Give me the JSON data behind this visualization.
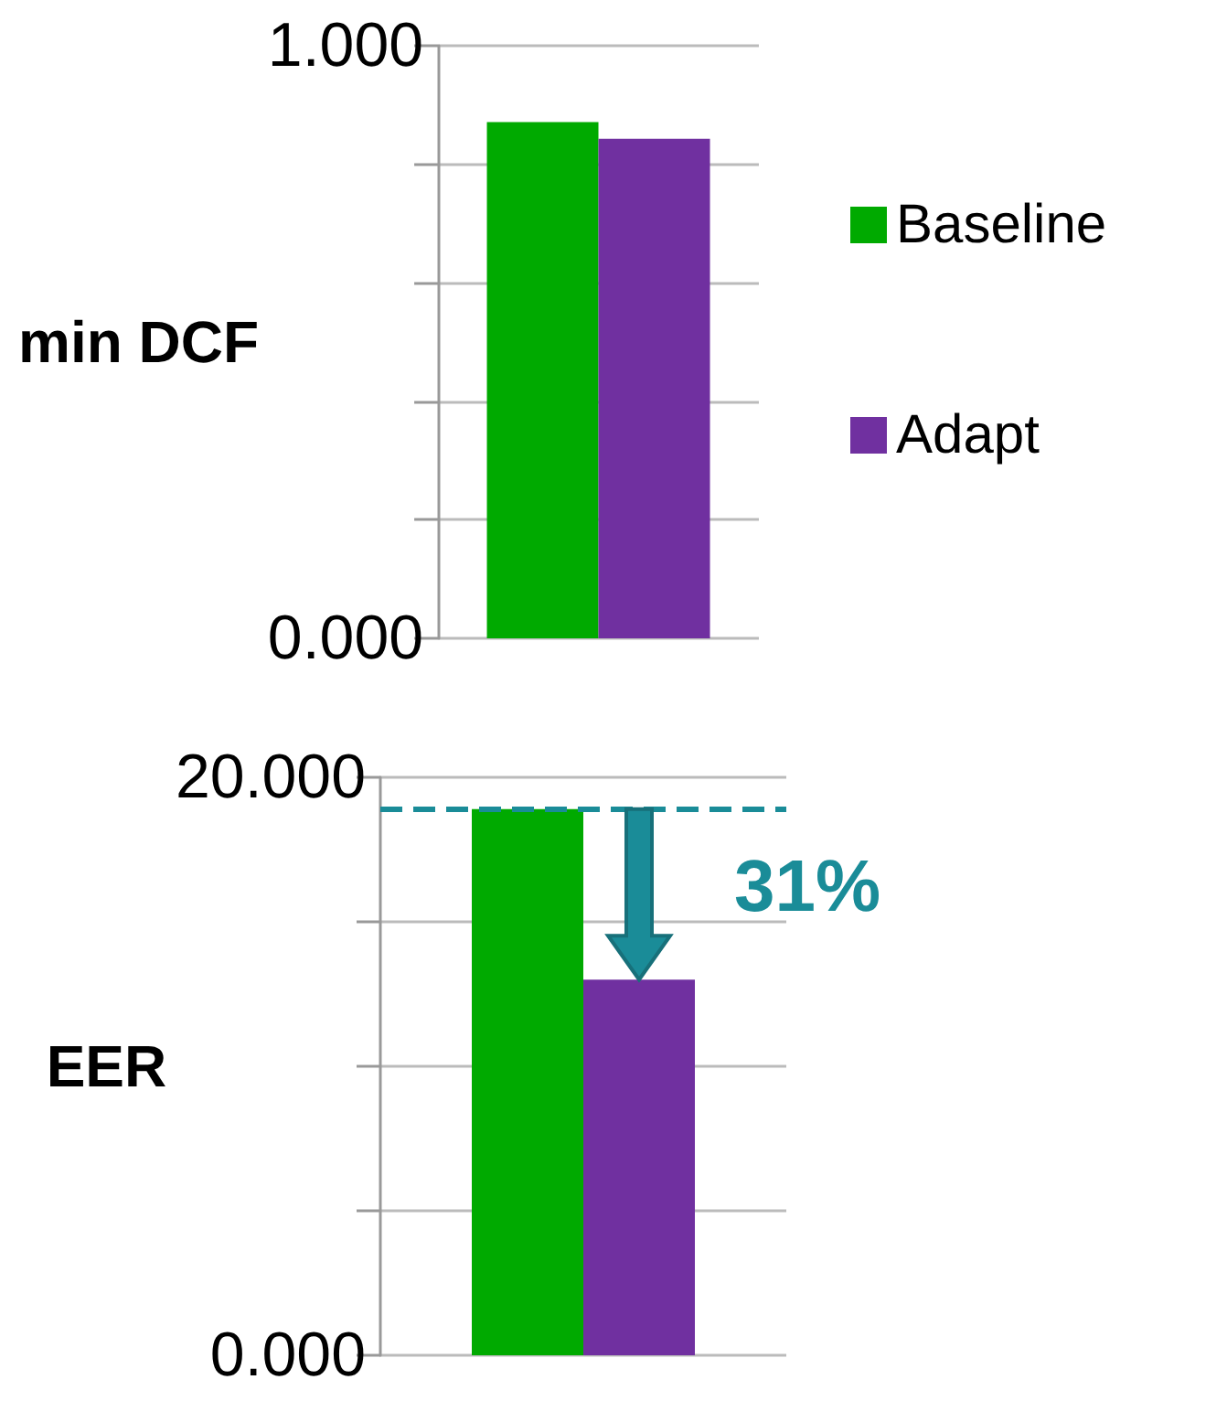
{
  "chart_data": [
    {
      "type": "bar",
      "ylabel": "min DCF",
      "categories": [
        null
      ],
      "series": [
        {
          "name": "Baseline",
          "color": "#00aa00",
          "values": [
            0.871
          ]
        },
        {
          "name": "Adapt",
          "color": "#7030a0",
          "values": [
            0.843
          ]
        }
      ],
      "ylim": [
        0,
        1
      ],
      "yticks": [
        {
          "value": 0,
          "label": "0.000"
        },
        {
          "value": 0.2,
          "label": null
        },
        {
          "value": 0.4,
          "label": null
        },
        {
          "value": 0.6,
          "label": null
        },
        {
          "value": 0.8,
          "label": null
        },
        {
          "value": 1,
          "label": "1.000"
        }
      ],
      "grid": "y",
      "legend": "right"
    },
    {
      "type": "bar",
      "ylabel": "EER",
      "categories": [
        null
      ],
      "series": [
        {
          "color": "#00aa00",
          "values": [
            18.9
          ]
        },
        {
          "color": "#7030a0",
          "values": [
            13.0
          ]
        }
      ],
      "ylim": [
        0,
        20
      ],
      "yticks": [
        {
          "value": 0,
          "label": "0.000"
        },
        {
          "value": 5,
          "label": null
        },
        {
          "value": 10,
          "label": null
        },
        {
          "value": 15,
          "label": null
        },
        {
          "value": 20,
          "label": "20.000"
        }
      ],
      "grid": "y",
      "ref_lines": [
        {
          "axis": "y",
          "value": 18.9,
          "color": "#1a8c98",
          "line_style": "dashed"
        }
      ],
      "annotations": [
        "31%"
      ]
    }
  ]
}
